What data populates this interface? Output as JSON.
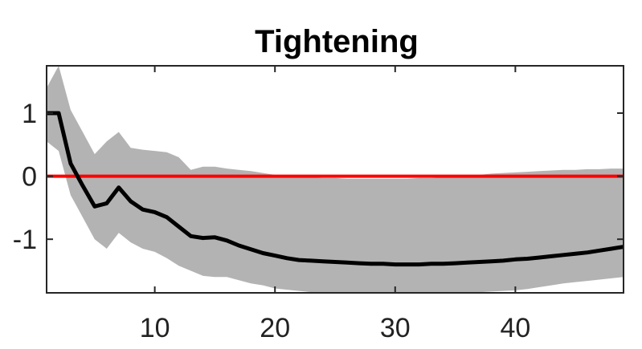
{
  "chart_data": {
    "type": "line",
    "title": "Tightening",
    "xlabel": "",
    "ylabel": "",
    "xlim": [
      1,
      49
    ],
    "ylim": [
      -1.85,
      1.75
    ],
    "xticks": [
      10,
      20,
      30,
      40
    ],
    "xtick_labels": [
      "10",
      "20",
      "30",
      "40"
    ],
    "yticks": [
      1,
      0,
      -1
    ],
    "ytick_labels": [
      "1",
      "0",
      "-1"
    ],
    "grid": false,
    "legend": "none",
    "reference_line": {
      "y": 0,
      "color": "#ff0000"
    },
    "colors": {
      "median": "#000000",
      "band": "#b3b3b3",
      "zero_line": "#ff0000"
    },
    "series": [
      {
        "role": "median",
        "x": [
          1,
          2,
          3,
          4,
          5,
          6,
          7,
          8,
          9,
          10,
          11,
          12,
          13,
          14,
          15,
          16,
          17,
          18,
          19,
          20,
          21,
          22,
          23,
          24,
          25,
          26,
          27,
          28,
          29,
          30,
          31,
          32,
          33,
          34,
          35,
          36,
          37,
          38,
          39,
          40,
          41,
          42,
          43,
          44,
          45,
          46,
          47,
          48,
          49
        ],
        "values": [
          1.0,
          1.0,
          0.2,
          -0.15,
          -0.48,
          -0.43,
          -0.18,
          -0.4,
          -0.53,
          -0.57,
          -0.65,
          -0.8,
          -0.95,
          -0.98,
          -0.97,
          -1.02,
          -1.1,
          -1.16,
          -1.22,
          -1.26,
          -1.3,
          -1.33,
          -1.34,
          -1.35,
          -1.36,
          -1.37,
          -1.38,
          -1.39,
          -1.39,
          -1.4,
          -1.4,
          -1.4,
          -1.39,
          -1.39,
          -1.38,
          -1.37,
          -1.36,
          -1.35,
          -1.34,
          -1.32,
          -1.31,
          -1.29,
          -1.27,
          -1.25,
          -1.23,
          -1.21,
          -1.18,
          -1.15,
          -1.12
        ]
      },
      {
        "role": "upper",
        "x": [
          1,
          2,
          3,
          4,
          5,
          6,
          7,
          8,
          9,
          10,
          11,
          12,
          13,
          14,
          15,
          16,
          17,
          18,
          19,
          20,
          21,
          22,
          23,
          24,
          25,
          26,
          27,
          28,
          29,
          30,
          31,
          32,
          33,
          34,
          35,
          36,
          37,
          38,
          39,
          40,
          41,
          42,
          43,
          44,
          45,
          46,
          47,
          48,
          49
        ],
        "values": [
          1.4,
          1.75,
          1.05,
          0.7,
          0.35,
          0.55,
          0.7,
          0.45,
          0.42,
          0.4,
          0.38,
          0.3,
          0.1,
          0.15,
          0.15,
          0.12,
          0.1,
          0.08,
          0.05,
          0.02,
          0.0,
          -0.01,
          -0.02,
          -0.03,
          -0.03,
          -0.04,
          -0.04,
          -0.04,
          -0.04,
          -0.04,
          -0.04,
          -0.03,
          -0.03,
          -0.02,
          -0.01,
          0.0,
          0.02,
          0.04,
          0.05,
          0.06,
          0.07,
          0.08,
          0.09,
          0.1,
          0.1,
          0.11,
          0.11,
          0.12,
          0.12
        ]
      },
      {
        "role": "lower",
        "x": [
          1,
          2,
          3,
          4,
          5,
          6,
          7,
          8,
          9,
          10,
          11,
          12,
          13,
          14,
          15,
          16,
          17,
          18,
          19,
          20,
          21,
          22,
          23,
          24,
          25,
          26,
          27,
          28,
          29,
          30,
          31,
          32,
          33,
          34,
          35,
          36,
          37,
          38,
          39,
          40,
          41,
          42,
          43,
          44,
          45,
          46,
          47,
          48,
          49
        ],
        "values": [
          0.55,
          0.4,
          -0.3,
          -0.65,
          -1.0,
          -1.15,
          -0.9,
          -1.05,
          -1.15,
          -1.2,
          -1.3,
          -1.42,
          -1.5,
          -1.58,
          -1.6,
          -1.6,
          -1.65,
          -1.7,
          -1.73,
          -1.78,
          -1.8,
          -1.82,
          -1.84,
          -1.85,
          -1.85,
          -1.85,
          -1.85,
          -1.85,
          -1.85,
          -1.85,
          -1.85,
          -1.85,
          -1.85,
          -1.85,
          -1.85,
          -1.85,
          -1.84,
          -1.83,
          -1.82,
          -1.81,
          -1.79,
          -1.76,
          -1.73,
          -1.7,
          -1.68,
          -1.66,
          -1.64,
          -1.62,
          -1.6
        ]
      }
    ]
  }
}
